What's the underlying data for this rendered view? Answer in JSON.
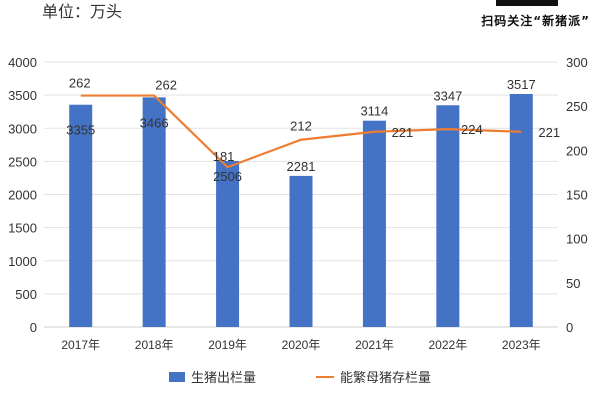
{
  "header": {
    "unit_label": "单位：万头",
    "qr_caption": "扫码关注“新猪派”"
  },
  "colors": {
    "bar": "#4472C4",
    "line": "#ED7D31",
    "grid": "#E3E3E3",
    "text": "#333333"
  },
  "chart_data": {
    "type": "bar+line",
    "title": "",
    "categories": [
      "2017年",
      "2018年",
      "2019年",
      "2020年",
      "2021年",
      "2022年",
      "2023年"
    ],
    "series": [
      {
        "name": "生猪出栏量",
        "type": "bar",
        "axis": "left",
        "values": [
          3355,
          3466,
          2506,
          2281,
          3114,
          3347,
          3517
        ]
      },
      {
        "name": "能繁母猪存栏量",
        "type": "line",
        "axis": "right",
        "values": [
          262,
          262,
          181,
          212,
          221,
          224,
          221
        ]
      }
    ],
    "left_axis": {
      "ylim": [
        0,
        4000
      ],
      "ticks": [
        0,
        500,
        1000,
        1500,
        2000,
        2500,
        3000,
        3500,
        4000
      ]
    },
    "right_axis": {
      "ylim": [
        0,
        300
      ],
      "ticks": [
        0,
        50,
        100,
        150,
        200,
        250,
        300
      ]
    },
    "xlabel": "",
    "ylabel": "单位：万头",
    "grid": true,
    "legend_position": "bottom"
  },
  "legend": {
    "bar_label": "生猪出栏量",
    "line_label": "能繁母猪存栏量"
  }
}
